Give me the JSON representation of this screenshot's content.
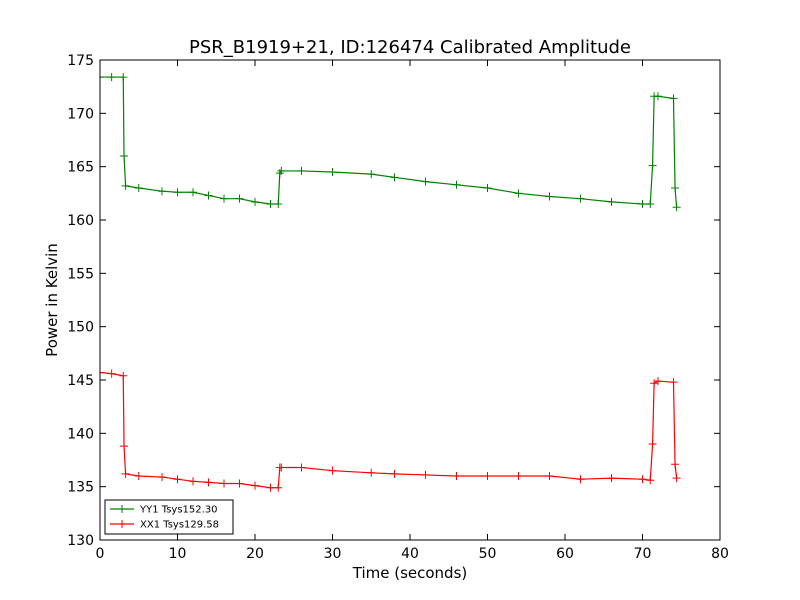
{
  "chart_data": {
    "type": "line",
    "title": "PSR_B1919+21, ID:126474 Calibrated Amplitude",
    "xlabel": "Time (seconds)",
    "ylabel": "Power in Kelvin",
    "xlim": [
      0,
      80
    ],
    "ylim": [
      130,
      175
    ],
    "xticks": [
      0,
      10,
      20,
      30,
      40,
      50,
      60,
      70,
      80
    ],
    "yticks": [
      130,
      135,
      140,
      145,
      150,
      155,
      160,
      165,
      170,
      175
    ],
    "grid": false,
    "legend_position": "lower-left",
    "series": [
      {
        "name": "YY1 Tsys152.30",
        "color": "#008000",
        "marker": "+",
        "x": [
          0.0,
          1.5,
          3.0,
          3.1,
          3.3,
          5,
          8,
          10,
          12,
          14,
          16,
          18,
          20,
          22,
          23.0,
          23.2,
          23.4,
          26,
          30,
          35,
          38,
          42,
          46,
          50,
          54,
          58,
          62,
          66,
          70,
          71.0,
          71.3,
          71.5,
          72,
          74.0,
          74.2,
          74.4
        ],
        "y": [
          173.4,
          173.4,
          173.4,
          166.0,
          163.2,
          163.0,
          162.7,
          162.6,
          162.6,
          162.3,
          162.0,
          162.0,
          161.7,
          161.5,
          161.5,
          164.4,
          164.6,
          164.6,
          164.5,
          164.3,
          164.0,
          163.6,
          163.3,
          163.0,
          162.5,
          162.2,
          162.0,
          161.7,
          161.5,
          161.5,
          165.1,
          171.6,
          171.6,
          171.4,
          163.0,
          161.2
        ]
      },
      {
        "name": "XX1 Tsys129.58",
        "color": "#ff0000",
        "marker": "+",
        "x": [
          0.0,
          1.5,
          3.0,
          3.1,
          3.3,
          5,
          8,
          10,
          12,
          14,
          16,
          18,
          20,
          22,
          23.0,
          23.2,
          23.4,
          26,
          30,
          35,
          38,
          42,
          46,
          50,
          54,
          58,
          62,
          66,
          70,
          71.0,
          71.3,
          71.5,
          72,
          74.0,
          74.2,
          74.4
        ],
        "y": [
          145.7,
          145.6,
          145.4,
          138.8,
          136.2,
          136.0,
          135.9,
          135.7,
          135.5,
          135.4,
          135.3,
          135.3,
          135.1,
          134.9,
          134.9,
          136.8,
          136.8,
          136.8,
          136.5,
          136.3,
          136.2,
          136.1,
          136.0,
          136.0,
          136.0,
          136.0,
          135.7,
          135.8,
          135.7,
          135.6,
          139.0,
          144.7,
          144.9,
          144.8,
          137.1,
          135.8
        ]
      }
    ]
  }
}
